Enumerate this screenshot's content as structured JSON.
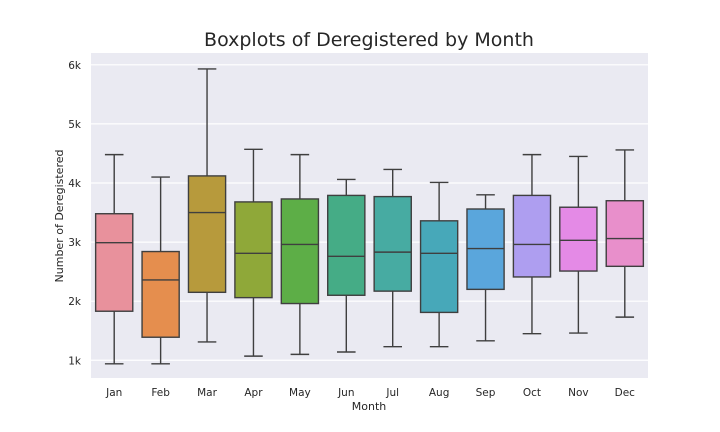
{
  "chart_data": {
    "type": "boxplot",
    "title": "Boxplots of Deregistered by Month",
    "xlabel": "Month",
    "ylabel": "Number of Deregistered",
    "ylim": [
      700,
      6200
    ],
    "yticks": [
      1000,
      2000,
      3000,
      4000,
      5000,
      6000
    ],
    "ytick_labels": [
      "1k",
      "2k",
      "3k",
      "4k",
      "5k",
      "6k"
    ],
    "grid": true,
    "categories": [
      "Jan",
      "Feb",
      "Mar",
      "Apr",
      "May",
      "Jun",
      "Jul",
      "Aug",
      "Sep",
      "Oct",
      "Nov",
      "Dec"
    ],
    "colors": [
      "#e8919c",
      "#e58e4e",
      "#b79a3c",
      "#8fa839",
      "#5dae47",
      "#45ac86",
      "#47aba2",
      "#47a8b9",
      "#5aa6dc",
      "#ae9ef0",
      "#e48ae6",
      "#e88fcb"
    ],
    "boxes": [
      {
        "min": 940,
        "q1": 1830,
        "median": 2990,
        "q3": 3480,
        "max": 4480
      },
      {
        "min": 940,
        "q1": 1390,
        "median": 2360,
        "q3": 2840,
        "max": 4100
      },
      {
        "min": 1310,
        "q1": 2150,
        "median": 3500,
        "q3": 4120,
        "max": 5930
      },
      {
        "min": 1070,
        "q1": 2060,
        "median": 2810,
        "q3": 3680,
        "max": 4570
      },
      {
        "min": 1100,
        "q1": 1960,
        "median": 2960,
        "q3": 3730,
        "max": 4480
      },
      {
        "min": 1140,
        "q1": 2100,
        "median": 2760,
        "q3": 3790,
        "max": 4060
      },
      {
        "min": 1230,
        "q1": 2170,
        "median": 2830,
        "q3": 3770,
        "max": 4230
      },
      {
        "min": 1230,
        "q1": 1810,
        "median": 2810,
        "q3": 3360,
        "max": 4010
      },
      {
        "min": 1330,
        "q1": 2200,
        "median": 2890,
        "q3": 3560,
        "max": 3800
      },
      {
        "min": 1450,
        "q1": 2410,
        "median": 2960,
        "q3": 3790,
        "max": 4480
      },
      {
        "min": 1460,
        "q1": 2510,
        "median": 3030,
        "q3": 3590,
        "max": 4450
      },
      {
        "min": 1730,
        "q1": 2590,
        "median": 3060,
        "q3": 3700,
        "max": 4560
      }
    ]
  }
}
